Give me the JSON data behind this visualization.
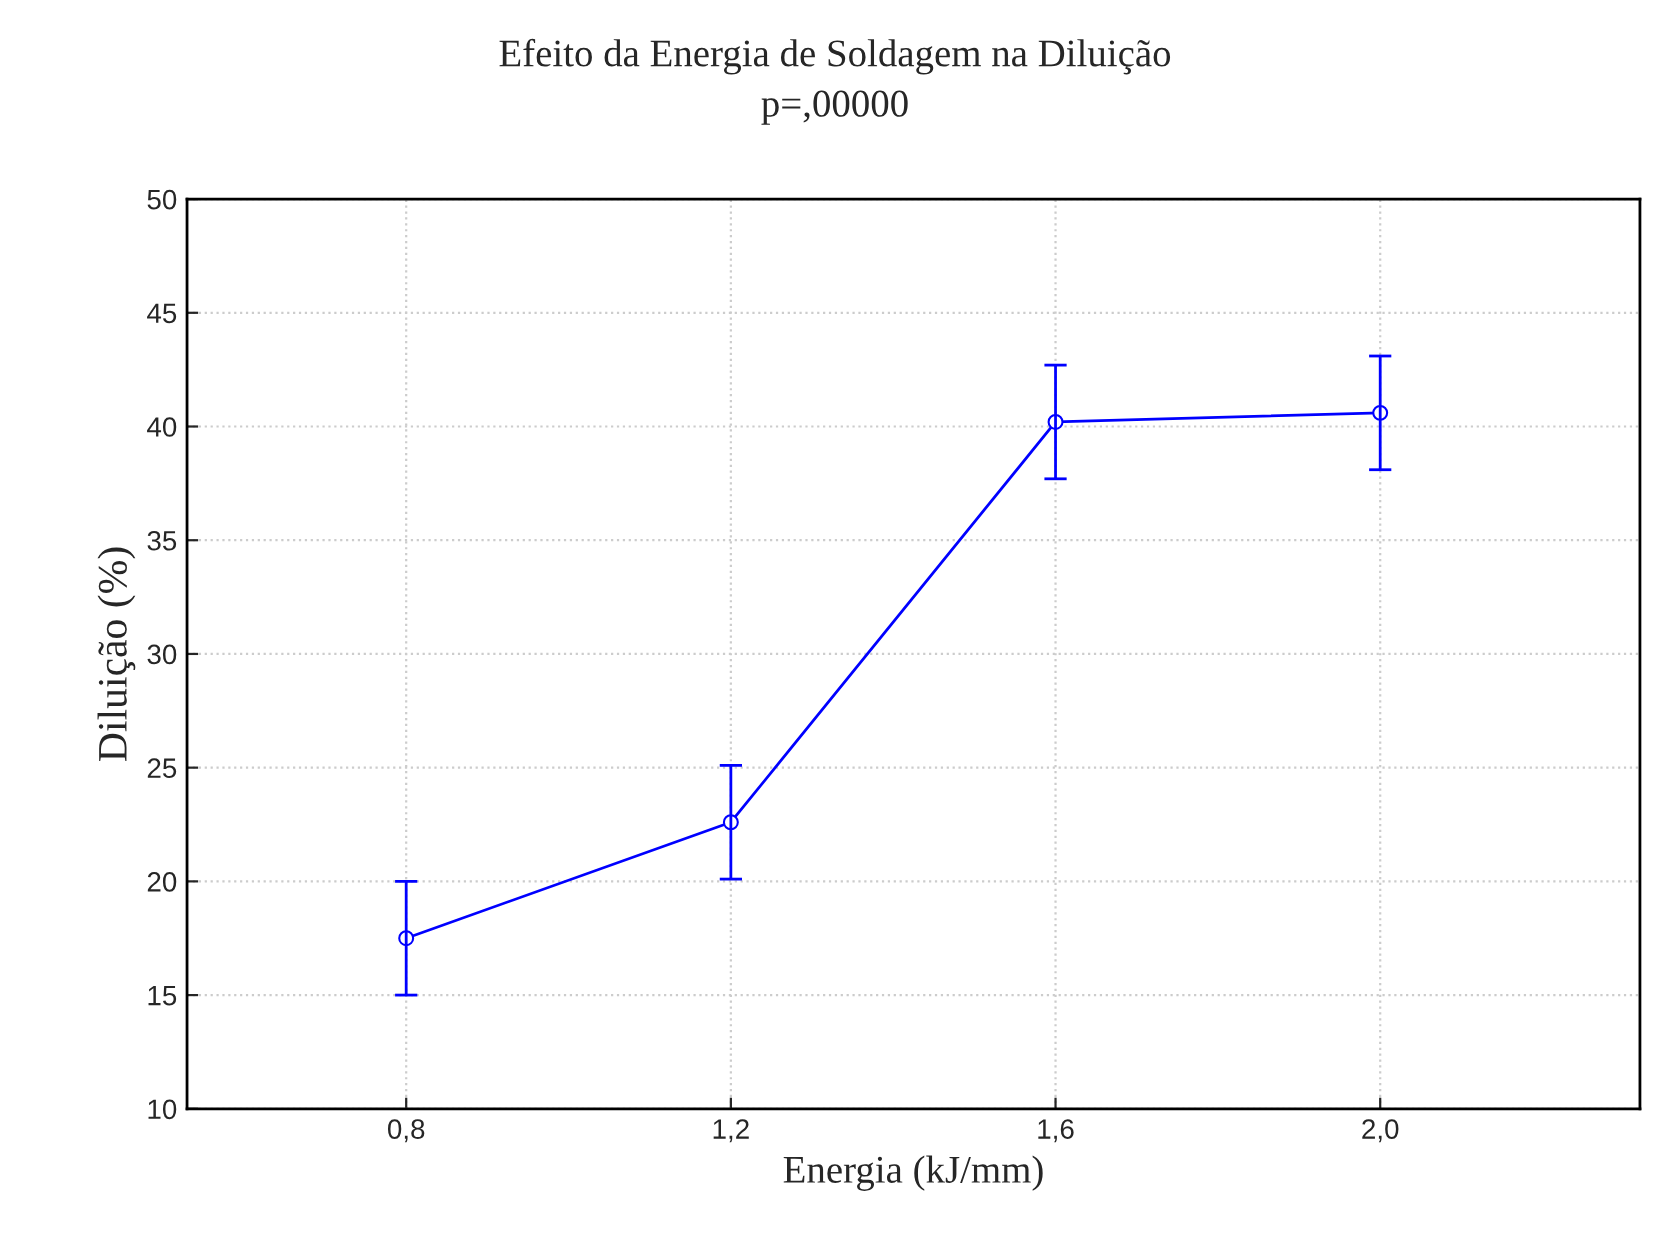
{
  "chart_data": {
    "type": "line",
    "title": "Efeito da Energia de Soldagem na Diluição",
    "subtitle": "p=,00000",
    "xlabel": "Energia (kJ/mm)",
    "ylabel": "Diluição (%)",
    "x": [
      0.8,
      1.2,
      1.6,
      2.0
    ],
    "series": [
      {
        "color": "#0000ff",
        "values": [
          17.5,
          22.6,
          40.2,
          40.6
        ],
        "errors": [
          2.5,
          2.5,
          2.5,
          2.5
        ]
      }
    ],
    "xlim": [
      0.53,
      2.32
    ],
    "xticks": [
      {
        "value": 0.8,
        "label": "0,8"
      },
      {
        "value": 1.2,
        "label": "1,2"
      },
      {
        "value": 1.6,
        "label": "1,6"
      },
      {
        "value": 2.0,
        "label": "2,0"
      }
    ],
    "ylim": [
      10,
      50
    ],
    "yticks": [
      10,
      15,
      20,
      25,
      30,
      35,
      40,
      45,
      50
    ],
    "grid": true,
    "marker": "circle",
    "line_style": "solid"
  }
}
